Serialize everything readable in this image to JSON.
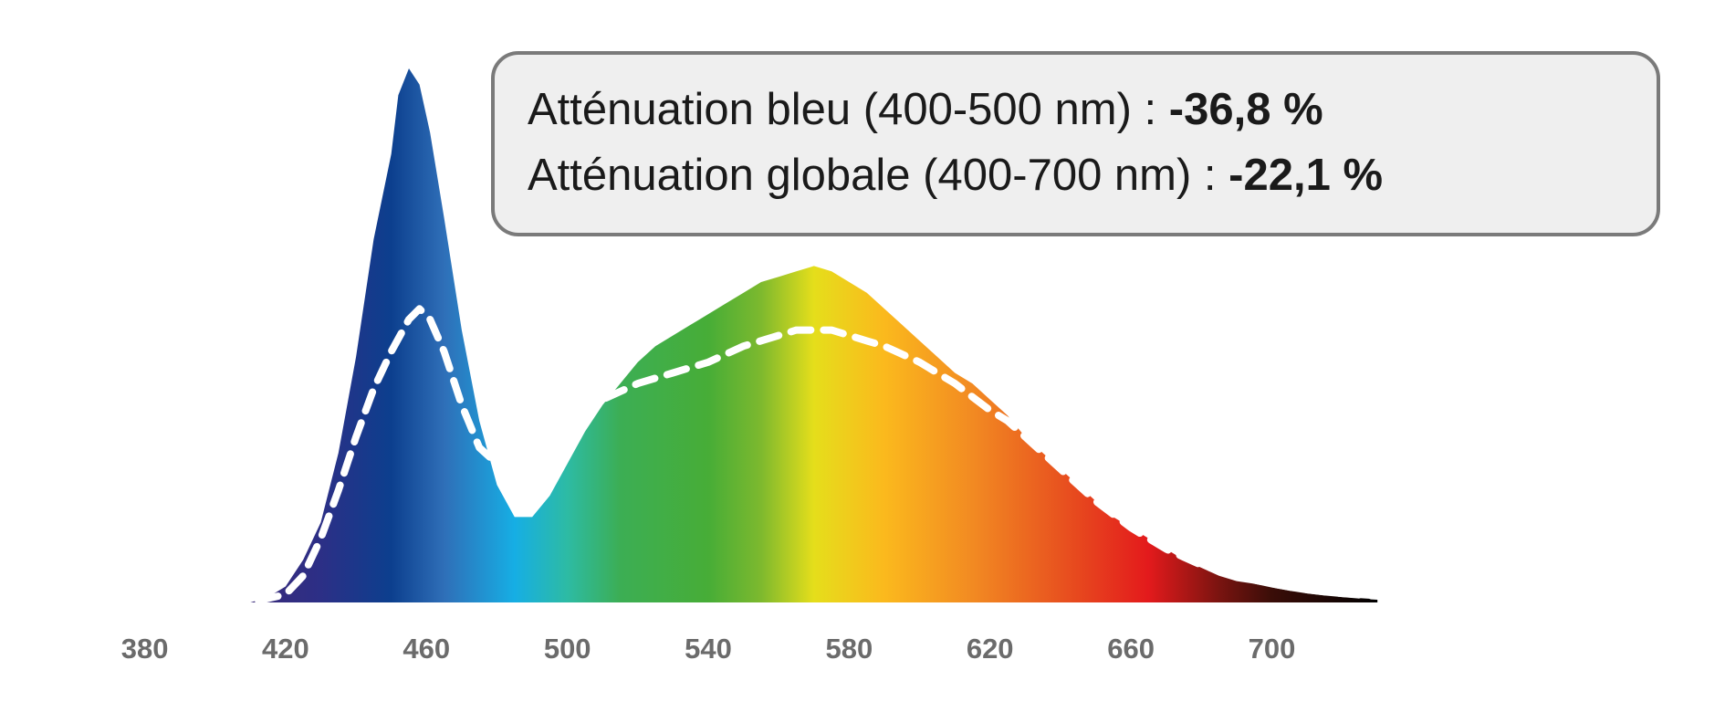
{
  "annotations": [
    {
      "label": "Atténuation bleu (400-500 nm) : ",
      "value": "-36,8 %"
    },
    {
      "label": "Atténuation globale (400-700 nm) : ",
      "value": "-22,1 %"
    }
  ],
  "chart_data": {
    "type": "area",
    "title": "",
    "xlabel": "",
    "ylabel": "",
    "xlim": [
      370,
      760
    ],
    "ylim": [
      0,
      1.0
    ],
    "grid": false,
    "legend": "none",
    "x_ticks": [
      380,
      420,
      460,
      500,
      540,
      580,
      620,
      660,
      700
    ],
    "series": [
      {
        "style": "filled-spectrum",
        "x": [
          410,
          415,
          420,
          425,
          430,
          435,
          440,
          445,
          450,
          452,
          455,
          458,
          461,
          465,
          470,
          475,
          480,
          485,
          490,
          495,
          500,
          505,
          510,
          515,
          520,
          525,
          530,
          535,
          540,
          545,
          550,
          555,
          560,
          565,
          570,
          575,
          580,
          585,
          590,
          595,
          600,
          605,
          610,
          615,
          620,
          625,
          630,
          635,
          640,
          645,
          650,
          655,
          660,
          665,
          670,
          675,
          680,
          685,
          690,
          695,
          700,
          705,
          710,
          715,
          720,
          725,
          730
        ],
        "values": [
          0.0,
          0.01,
          0.03,
          0.08,
          0.15,
          0.28,
          0.46,
          0.68,
          0.84,
          0.95,
          1.0,
          0.97,
          0.88,
          0.72,
          0.51,
          0.34,
          0.22,
          0.16,
          0.16,
          0.2,
          0.26,
          0.32,
          0.37,
          0.41,
          0.45,
          0.48,
          0.5,
          0.52,
          0.54,
          0.56,
          0.58,
          0.6,
          0.61,
          0.62,
          0.63,
          0.62,
          0.6,
          0.58,
          0.55,
          0.52,
          0.49,
          0.46,
          0.43,
          0.41,
          0.38,
          0.35,
          0.31,
          0.28,
          0.25,
          0.22,
          0.19,
          0.16,
          0.14,
          0.12,
          0.1,
          0.08,
          0.065,
          0.05,
          0.04,
          0.035,
          0.028,
          0.022,
          0.017,
          0.013,
          0.01,
          0.008,
          0.006
        ]
      },
      {
        "style": "dashed-white",
        "x": [
          375,
          410,
          420,
          425,
          430,
          435,
          440,
          445,
          450,
          455,
          458,
          461,
          465,
          470,
          475,
          480,
          485,
          490,
          495,
          500,
          505,
          510,
          520,
          530,
          540,
          550,
          560,
          565,
          570,
          575,
          580,
          585,
          590,
          595,
          600,
          605,
          610,
          615,
          620,
          625,
          630,
          635,
          640,
          645,
          650,
          655,
          660,
          665,
          670,
          675,
          680,
          685,
          690,
          695,
          700,
          705,
          710,
          715,
          720,
          725,
          730
        ],
        "values": [
          0.0,
          0.0,
          0.015,
          0.05,
          0.12,
          0.21,
          0.31,
          0.4,
          0.47,
          0.53,
          0.55,
          0.53,
          0.47,
          0.37,
          0.29,
          0.26,
          0.25,
          0.27,
          0.3,
          0.33,
          0.36,
          0.38,
          0.41,
          0.43,
          0.45,
          0.48,
          0.5,
          0.51,
          0.51,
          0.51,
          0.5,
          0.49,
          0.48,
          0.465,
          0.45,
          0.43,
          0.41,
          0.385,
          0.36,
          0.34,
          0.31,
          0.28,
          0.25,
          0.22,
          0.19,
          0.165,
          0.14,
          0.12,
          0.1,
          0.085,
          0.07,
          0.06,
          0.05,
          0.042,
          0.035,
          0.029,
          0.024,
          0.02,
          0.017,
          0.014,
          0.012
        ]
      }
    ],
    "colors": {
      "spectrum_stops": [
        {
          "wavelength": 410,
          "color": "#3a2a7a"
        },
        {
          "wavelength": 430,
          "color": "#2c2f86"
        },
        {
          "wavelength": 450,
          "color": "#0c3f8e"
        },
        {
          "wavelength": 465,
          "color": "#2f6fb8"
        },
        {
          "wavelength": 485,
          "color": "#16aee4"
        },
        {
          "wavelength": 500,
          "color": "#2dbba4"
        },
        {
          "wavelength": 515,
          "color": "#3cae54"
        },
        {
          "wavelength": 540,
          "color": "#47ad37"
        },
        {
          "wavelength": 555,
          "color": "#7db92e"
        },
        {
          "wavelength": 570,
          "color": "#e5de1b"
        },
        {
          "wavelength": 590,
          "color": "#fbb91d"
        },
        {
          "wavelength": 615,
          "color": "#f28a22"
        },
        {
          "wavelength": 640,
          "color": "#e8531f"
        },
        {
          "wavelength": 665,
          "color": "#e31a1c"
        },
        {
          "wavelength": 685,
          "color": "#7a1410"
        },
        {
          "wavelength": 700,
          "color": "#3a0d08"
        },
        {
          "wavelength": 730,
          "color": "#000000"
        }
      ],
      "dashed_line": "#ffffff",
      "tick_labels": "#6b6b6b",
      "box_fill": "#efefef",
      "box_border": "#7a7a7a"
    }
  }
}
